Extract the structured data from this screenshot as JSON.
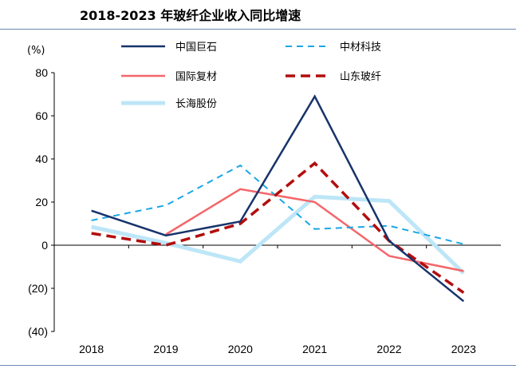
{
  "chart_data": {
    "type": "line",
    "title": "2018-2023 年玻纤企业收入同比增速",
    "ylabel": "(%)",
    "ylim": [
      -40,
      80
    ],
    "yticks": [
      80,
      60,
      40,
      20,
      0,
      -20,
      -40
    ],
    "ytick_labels": [
      "80",
      "60",
      "40",
      "20",
      "0",
      "(20)",
      "(40)"
    ],
    "categories": [
      "2018",
      "2019",
      "2020",
      "2021",
      "2022",
      "2023"
    ],
    "legend": "top",
    "grid": false,
    "series": [
      {
        "name": "中国巨石",
        "color": "#17336b",
        "style": "solid",
        "values": [
          16,
          4.5,
          11,
          69,
          2,
          -26
        ]
      },
      {
        "name": "中材科技",
        "color": "#1aa7e6",
        "style": "dashed",
        "values": [
          11.5,
          18.5,
          37,
          7.5,
          9,
          0.5
        ]
      },
      {
        "name": "国际复材",
        "color": "#f4666a",
        "style": "solid",
        "values": [
          null,
          5,
          26,
          20,
          -5,
          -12
        ]
      },
      {
        "name": "山东玻纤",
        "color": "#b30d0d",
        "style": "dashed",
        "values": [
          5.5,
          0,
          10,
          38,
          2,
          -22
        ]
      },
      {
        "name": "长海股份",
        "color": "#bde6f7",
        "style": "thick",
        "values": [
          8.5,
          1,
          -7.5,
          22.5,
          20.5,
          -13
        ]
      }
    ]
  }
}
